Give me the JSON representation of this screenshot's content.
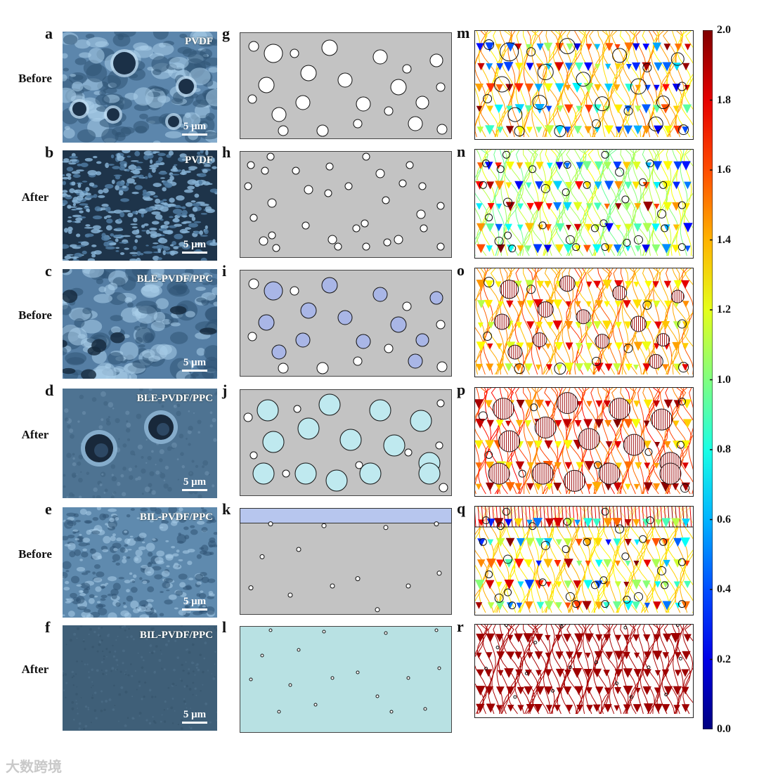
{
  "figure": {
    "sem_panels": [
      {
        "letter": "a",
        "state": "Before",
        "title": "PVDF",
        "scale": "5 μm",
        "texture": "pvdf-before"
      },
      {
        "letter": "b",
        "state": "After",
        "title": "PVDF",
        "scale": "5 μm",
        "texture": "pvdf-after"
      },
      {
        "letter": "c",
        "state": "Before",
        "title": "BLE-PVDF/PPC",
        "scale": "5 μm",
        "texture": "ble-before"
      },
      {
        "letter": "d",
        "state": "After",
        "title": "BLE-PVDF/PPC",
        "scale": "5 μm",
        "texture": "ble-after"
      },
      {
        "letter": "e",
        "state": "Before",
        "title": "BIL-PVDF/PPC",
        "scale": "5 μm",
        "texture": "bil-before"
      },
      {
        "letter": "f",
        "state": "After",
        "title": "BIL-PVDF/PPC",
        "scale": "5 μm",
        "texture": "bil-after"
      }
    ],
    "model_panels": [
      {
        "letter": "g",
        "fill": "#c3c3c3",
        "particle": "#ffffff",
        "style": "large-white"
      },
      {
        "letter": "h",
        "fill": "#c3c3c3",
        "particle": "#ffffff",
        "style": "small-white"
      },
      {
        "letter": "i",
        "fill": "#c3c3c3",
        "particle": "#a9b6e6",
        "style": "large-blue"
      },
      {
        "letter": "j",
        "fill": "#c3c3c3",
        "particle": "#bfe9ef",
        "style": "xlarge-cyan"
      },
      {
        "letter": "k",
        "fill": "#c3c3c3",
        "particle": "#ffffff",
        "style": "layer-top",
        "layer": "#b7c6ee"
      },
      {
        "letter": "l",
        "fill": "#b8e1e3",
        "particle": "#ffffff",
        "style": "tiny"
      }
    ],
    "field_panels": [
      {
        "letter": "m"
      },
      {
        "letter": "n"
      },
      {
        "letter": "o"
      },
      {
        "letter": "p"
      },
      {
        "letter": "q"
      },
      {
        "letter": "r"
      }
    ],
    "colorbar": {
      "min": 0.0,
      "max": 2.0,
      "ticks": [
        "2.0",
        "1.8",
        "1.6",
        "1.4",
        "1.2",
        "1.0",
        "0.8",
        "0.6",
        "0.4",
        "0.2",
        "0.0"
      ]
    },
    "watermark": "大数跨境"
  }
}
